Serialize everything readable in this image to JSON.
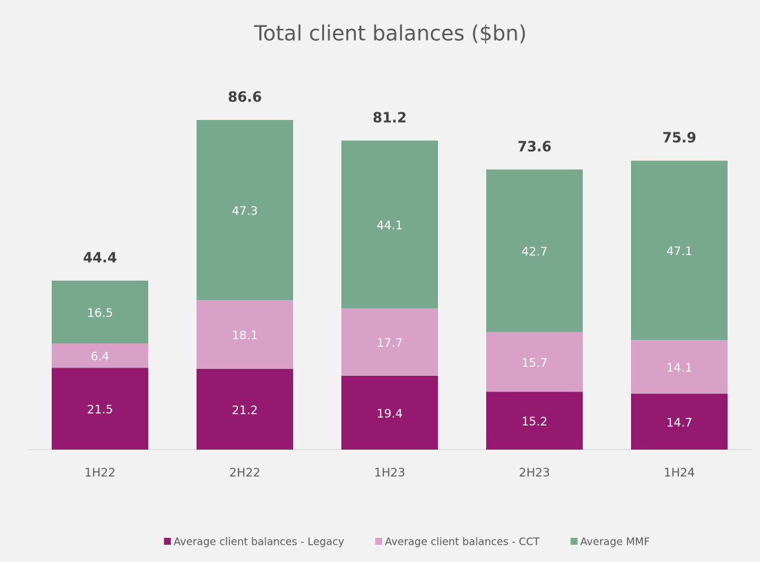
{
  "chart_data": {
    "type": "stacked_bar",
    "title": "Total client balances ($bn)",
    "categories": [
      "1H22",
      "2H22",
      "1H23",
      "2H23",
      "1H24"
    ],
    "series": [
      {
        "name": "Average client balances - Legacy",
        "color": "#951a6f",
        "values": [
          21.5,
          21.2,
          19.4,
          15.2,
          14.7
        ]
      },
      {
        "name": "Average client balances - CCT",
        "color": "#d9a1c7",
        "values": [
          6.4,
          18.1,
          17.7,
          15.7,
          14.1
        ]
      },
      {
        "name": "Average MMF",
        "color": "#78a88d",
        "values": [
          16.5,
          47.3,
          44.1,
          42.7,
          47.1
        ]
      }
    ],
    "totals": [
      44.4,
      86.6,
      81.2,
      73.6,
      75.9
    ],
    "legend": "bottom"
  }
}
